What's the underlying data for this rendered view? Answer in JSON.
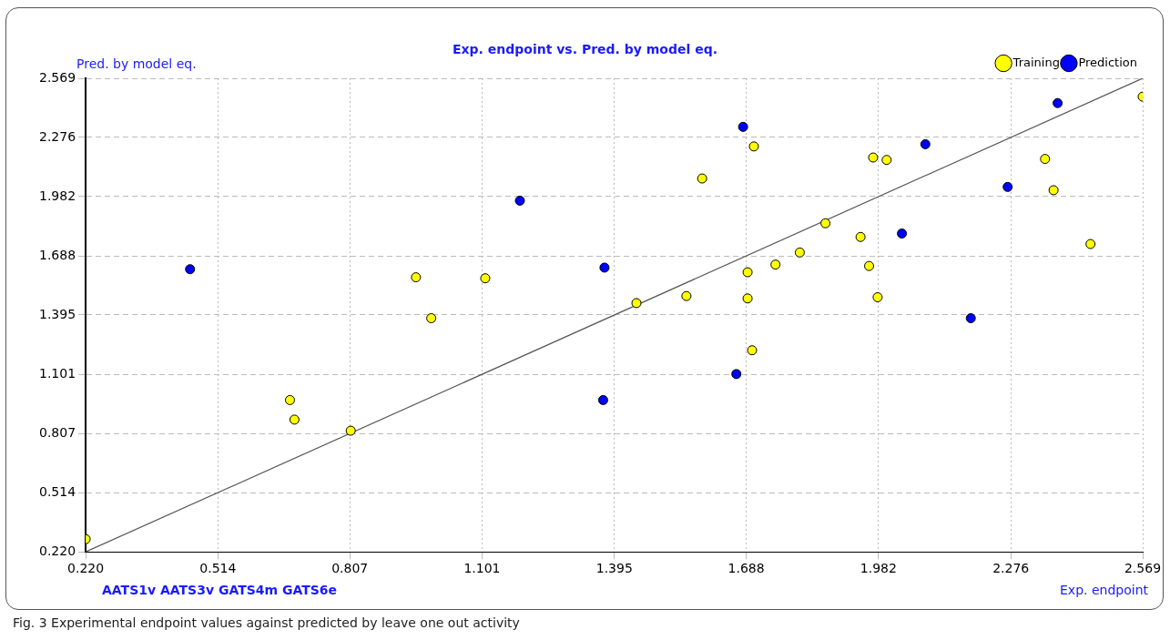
{
  "chart_data": {
    "type": "scatter",
    "title": "Exp. endpoint vs. Pred. by model eq.",
    "xlabel": "Exp. endpoint",
    "ylabel": "Pred. by model eq.",
    "annotations": [
      "AATS1v AATS3v GATS4m GATS6e",
      "Fig. 3 Experimental endpoint values against predicted by leave one out activity"
    ],
    "series": [
      {
        "name": "Training",
        "type": "scatter",
        "color": "#ffff00",
        "x": [
          0.22,
          0.674,
          0.684,
          0.809,
          0.954,
          0.988,
          1.108,
          1.444,
          1.555,
          1.59,
          1.691,
          1.691,
          1.701,
          1.705,
          1.753,
          1.807,
          1.864,
          1.942,
          1.961,
          1.97,
          1.98,
          2.0,
          2.352,
          2.371,
          2.453,
          2.569
        ],
        "values": [
          0.283,
          0.973,
          0.876,
          0.821,
          1.582,
          1.379,
          1.577,
          1.454,
          1.489,
          2.072,
          1.607,
          1.477,
          1.22,
          2.231,
          1.645,
          1.705,
          1.85,
          1.782,
          1.638,
          2.176,
          1.483,
          2.164,
          2.169,
          2.014,
          1.747,
          2.478
        ]
      },
      {
        "name": "Prediction",
        "type": "scatter",
        "color": "#0000ff",
        "x": [
          0.452,
          1.185,
          1.373,
          1.37,
          1.681,
          1.666,
          2.034,
          2.086,
          2.187,
          2.269,
          2.38
        ],
        "values": [
          1.622,
          1.962,
          1.63,
          0.973,
          2.328,
          1.102,
          1.799,
          2.242,
          1.379,
          2.03,
          2.446
        ]
      },
      {
        "type": "line",
        "marker": "none",
        "color": "#555555",
        "x": [
          0.22,
          2.569
        ],
        "values": [
          0.22,
          2.569
        ]
      }
    ],
    "xlim": [
      0.22,
      2.569
    ],
    "ylim": [
      0.22,
      2.569
    ],
    "xticks": [
      {
        "value": 0.22,
        "label": "0.220"
      },
      {
        "value": 0.514,
        "label": "0.514"
      },
      {
        "value": 0.807,
        "label": "0.807"
      },
      {
        "value": 1.101,
        "label": "1.101"
      },
      {
        "value": 1.395,
        "label": "1.395"
      },
      {
        "value": 1.688,
        "label": "1.688"
      },
      {
        "value": 1.982,
        "label": "1.982"
      },
      {
        "value": 2.276,
        "label": "2.276"
      },
      {
        "value": 2.569,
        "label": "2.569"
      }
    ],
    "yticks": [
      {
        "value": 0.22,
        "label": "0.220"
      },
      {
        "value": 0.514,
        "label": "0.514"
      },
      {
        "value": 0.807,
        "label": "0.807"
      },
      {
        "value": 1.101,
        "label": "1.101"
      },
      {
        "value": 1.395,
        "label": "1.395"
      },
      {
        "value": 1.688,
        "label": "1.688"
      },
      {
        "value": 1.982,
        "label": "1.982"
      },
      {
        "value": 2.276,
        "label": "2.276"
      },
      {
        "value": 2.569,
        "label": "2.569"
      }
    ],
    "grid": true,
    "legend": "top right",
    "marker": "circle"
  }
}
